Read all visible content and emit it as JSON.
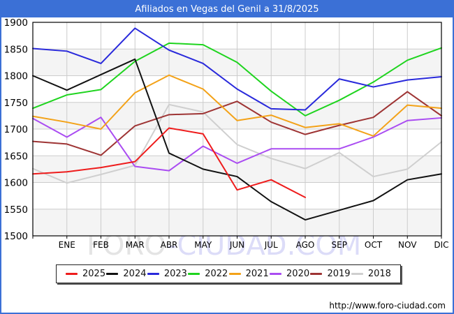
{
  "titlebar": {
    "title": "Afiliados en Vegas del Genil a 31/8/2025",
    "background_color": "#3b70d6",
    "text_color": "#ffffff"
  },
  "watermark": {
    "part1": "FORO",
    "part2": "-CIUDAD.COM"
  },
  "footer": {
    "url": "http://www.foro-ciudad.com"
  },
  "axis_colors": {
    "grid": "#cccccc",
    "band_fill": "#f4f4f4",
    "plot_border": "#000000",
    "tick_label": "#000000"
  },
  "chart_data": {
    "type": "line",
    "title": "Afiliados en Vegas del Genil a 31/8/2025",
    "xlabel": "",
    "ylabel": "",
    "categories": [
      "ENE",
      "FEB",
      "MAR",
      "ABR",
      "MAY",
      "JUN",
      "JUL",
      "AGO",
      "SEP",
      "OCT",
      "NOV",
      "DIC"
    ],
    "ylim": [
      1500,
      1900
    ],
    "ytick_step": 50,
    "grid": true,
    "legend_position": "bottom",
    "note": "First value of each series is the starting point drawn on the left axis before ENE; 2025 data ends in AGO (as of 31/8/2025).",
    "series": [
      {
        "name": "2025",
        "color": "#ee1c1c",
        "values": [
          1616,
          1620,
          1628,
          1639,
          1702,
          1691,
          1586,
          1605,
          1572
        ]
      },
      {
        "name": "2024",
        "color": "#111111",
        "values": [
          1800,
          1773,
          1802,
          1831,
          1655,
          1625,
          1611,
          1564,
          1530,
          1548,
          1566,
          1605,
          1616
        ]
      },
      {
        "name": "2023",
        "color": "#2929db",
        "values": [
          1851,
          1846,
          1823,
          1889,
          1848,
          1823,
          1775,
          1738,
          1736,
          1794,
          1779,
          1792,
          1798
        ]
      },
      {
        "name": "2022",
        "color": "#1ed41e",
        "values": [
          1739,
          1764,
          1774,
          1827,
          1861,
          1858,
          1825,
          1771,
          1725,
          1754,
          1788,
          1829,
          1852
        ]
      },
      {
        "name": "2021",
        "color": "#f3a218",
        "values": [
          1724,
          1713,
          1700,
          1768,
          1801,
          1775,
          1716,
          1726,
          1703,
          1710,
          1687,
          1745,
          1739
        ]
      },
      {
        "name": "2020",
        "color": "#aa4cf2",
        "values": [
          1720,
          1685,
          1722,
          1630,
          1622,
          1668,
          1636,
          1663,
          1663,
          1663,
          1685,
          1716,
          1721
        ]
      },
      {
        "name": "2019",
        "color": "#9e3434",
        "values": [
          1677,
          1672,
          1651,
          1706,
          1727,
          1729,
          1752,
          1713,
          1690,
          1707,
          1722,
          1770,
          1725
        ]
      },
      {
        "name": "2018",
        "color": "#cfcfcf",
        "values": [
          1626,
          1599,
          1615,
          1632,
          1746,
          1732,
          1671,
          1645,
          1626,
          1656,
          1611,
          1625,
          1676
        ]
      }
    ]
  }
}
